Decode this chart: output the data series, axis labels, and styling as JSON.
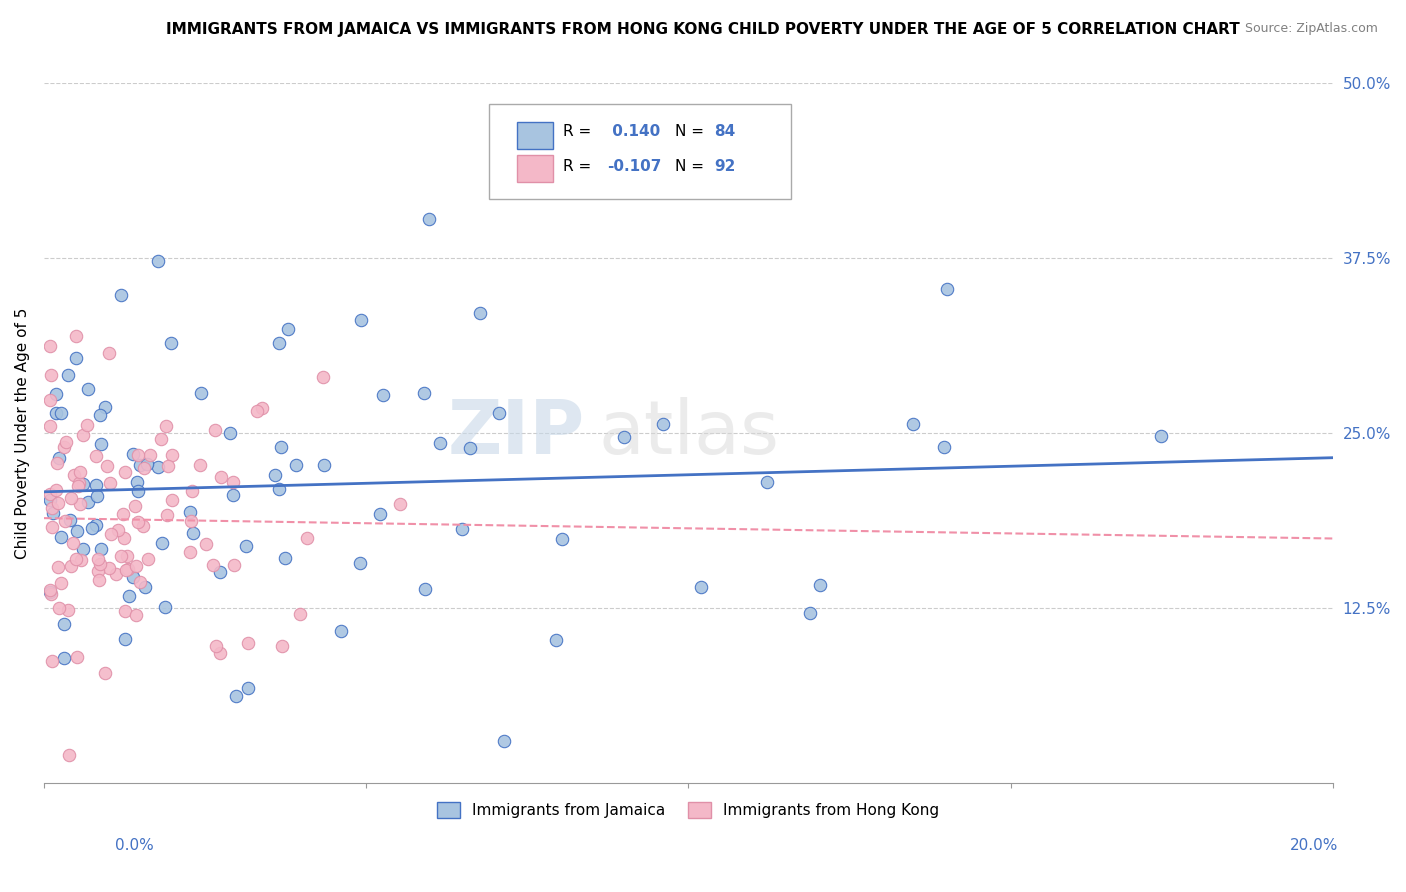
{
  "title": "IMMIGRANTS FROM JAMAICA VS IMMIGRANTS FROM HONG KONG CHILD POVERTY UNDER THE AGE OF 5 CORRELATION CHART",
  "source": "Source: ZipAtlas.com",
  "ylabel": "Child Poverty Under the Age of 5",
  "legend_label1": "Immigrants from Jamaica",
  "legend_label2": "Immigrants from Hong Kong",
  "color_jamaica": "#a8c4e0",
  "color_hongkong": "#f4b8c8",
  "color_jamaica_line": "#4472c4",
  "color_hongkong_line": "#f090a8",
  "xlim": [
    0.0,
    0.2
  ],
  "ylim": [
    0.0,
    0.5
  ],
  "ytick_vals": [
    0.0,
    0.125,
    0.25,
    0.375,
    0.5
  ],
  "ytick_labs": [
    "",
    "12.5%",
    "25.0%",
    "37.5%",
    "50.0%"
  ]
}
